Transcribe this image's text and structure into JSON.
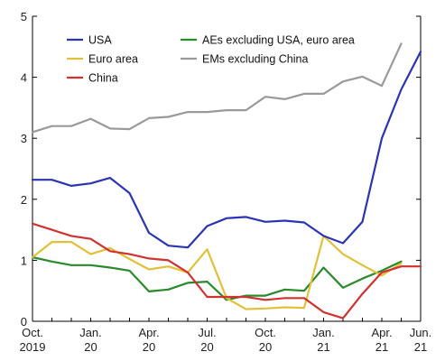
{
  "chart_data": {
    "type": "line",
    "title": "",
    "xlabel": "",
    "ylabel": "",
    "ylim": [
      0,
      5
    ],
    "yticks": [
      0,
      1,
      2,
      3,
      4,
      5
    ],
    "grid": false,
    "legend_position": "top",
    "x": [
      "2019-10",
      "2019-11",
      "2019-12",
      "2020-01",
      "2020-02",
      "2020-03",
      "2020-04",
      "2020-05",
      "2020-06",
      "2020-07",
      "2020-08",
      "2020-09",
      "2020-10",
      "2020-11",
      "2020-12",
      "2021-01",
      "2021-02",
      "2021-03",
      "2021-04",
      "2021-05",
      "2021-06"
    ],
    "x_tick_labels": [
      {
        "line1": "Oct.",
        "line2": "2019"
      },
      {
        "line1": "Jan.",
        "line2": "20"
      },
      {
        "line1": "Apr.",
        "line2": "20"
      },
      {
        "line1": "Jul.",
        "line2": "20"
      },
      {
        "line1": "Oct.",
        "line2": "20"
      },
      {
        "line1": "Jan.",
        "line2": "21"
      },
      {
        "line1": "Apr.",
        "line2": "21"
      },
      {
        "line1": "Jun.",
        "line2": "21"
      }
    ],
    "series": [
      {
        "name": "USA",
        "color": "#2a35b5",
        "values": [
          2.32,
          2.32,
          2.22,
          2.26,
          2.35,
          2.1,
          1.45,
          1.24,
          1.21,
          1.56,
          1.69,
          1.71,
          1.63,
          1.65,
          1.62,
          1.4,
          1.28,
          1.63,
          3.0,
          3.8,
          4.42
        ]
      },
      {
        "name": "Euro area",
        "color": "#e3c03a",
        "values": [
          1.05,
          1.3,
          1.3,
          1.1,
          1.2,
          1.02,
          0.85,
          0.9,
          0.8,
          1.18,
          0.38,
          0.2,
          0.21,
          0.23,
          0.22,
          1.4,
          1.1,
          0.92,
          0.75,
          0.95,
          null
        ]
      },
      {
        "name": "China",
        "color": "#d1322f",
        "values": [
          1.6,
          1.5,
          1.4,
          1.35,
          1.15,
          1.1,
          1.03,
          1.0,
          0.8,
          0.4,
          0.4,
          0.4,
          0.35,
          0.38,
          0.38,
          0.15,
          0.05,
          0.45,
          0.8,
          0.9,
          0.9
        ]
      },
      {
        "name": "AEs excluding USA, euro area",
        "color": "#2a8a2a",
        "values": [
          1.05,
          0.98,
          0.92,
          0.92,
          0.88,
          0.83,
          0.49,
          0.52,
          0.63,
          0.65,
          0.35,
          0.42,
          0.42,
          0.52,
          0.5,
          0.88,
          0.55,
          0.7,
          0.83,
          0.98,
          null
        ]
      },
      {
        "name": "EMs excluding China",
        "color": "#9a9a9a",
        "values": [
          3.1,
          3.2,
          3.2,
          3.32,
          3.16,
          3.15,
          3.33,
          3.35,
          3.43,
          3.43,
          3.46,
          3.46,
          3.68,
          3.64,
          3.73,
          3.73,
          3.93,
          4.01,
          3.86,
          4.55,
          null
        ]
      }
    ],
    "legend": [
      {
        "label": "USA",
        "color": "#2a35b5"
      },
      {
        "label": "Euro area",
        "color": "#e3c03a"
      },
      {
        "label": "China",
        "color": "#d1322f"
      },
      {
        "label": "AEs excluding USA, euro area",
        "color": "#2a8a2a"
      },
      {
        "label": "EMs excluding China",
        "color": "#9a9a9a"
      }
    ]
  }
}
